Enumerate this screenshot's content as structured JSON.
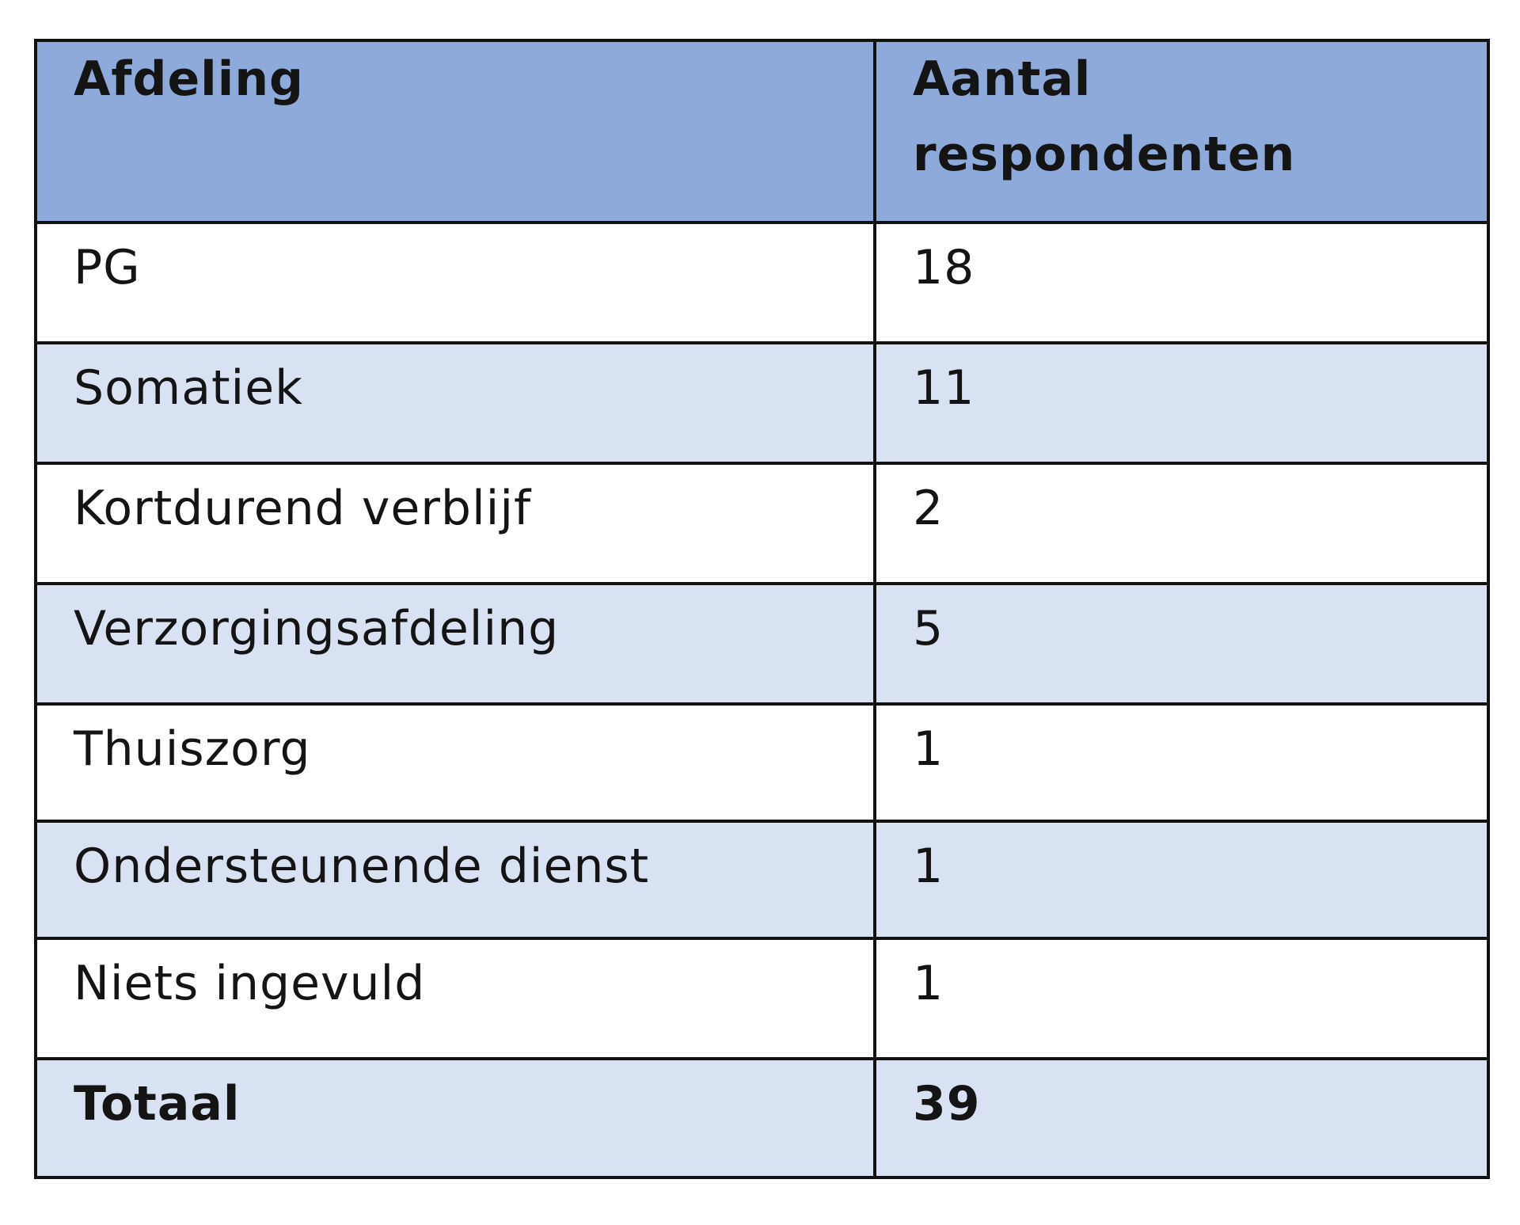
{
  "table": {
    "headers": [
      "Afdeling",
      "Aantal respondenten"
    ],
    "rows": [
      [
        "PG",
        "18"
      ],
      [
        "Somatiek",
        "11"
      ],
      [
        "Kortdurend verblijf",
        "2"
      ],
      [
        "Verzorgingsafdeling",
        "5"
      ],
      [
        "Thuiszorg",
        "1"
      ],
      [
        "Ondersteunende dienst",
        "1"
      ],
      [
        "Niets ingevuld",
        "1"
      ]
    ],
    "total": [
      "Totaal",
      "39"
    ]
  },
  "colors": {
    "header_bg": "#8eaadb",
    "band_bg": "#d9e2f3",
    "plain_bg": "#ffffff",
    "border": "#111111"
  }
}
